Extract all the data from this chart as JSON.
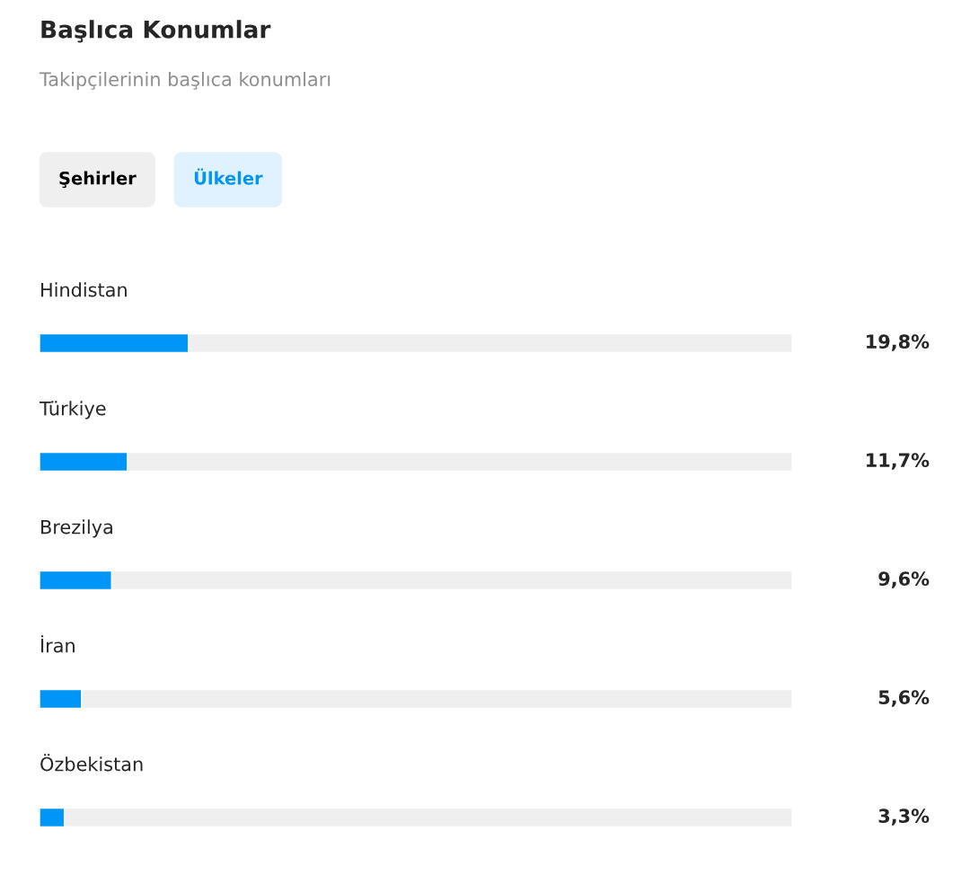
{
  "chart_data": {
    "type": "bar",
    "orientation": "horizontal",
    "stacked": true,
    "title": "Başlıca Konumlar",
    "subtitle": "Takipçilerinin başlıca konumları",
    "annotations": [
      "Şehirler",
      "Ülkeler"
    ],
    "categories": [
      "Hindistan",
      "Türkiye",
      "Brezilya",
      "İran",
      "Özbekistan"
    ],
    "series": [
      {
        "color": "#0095f6",
        "values": [
          19.8,
          11.7,
          9.6,
          5.6,
          3.3
        ],
        "value_labels": [
          "19,8%",
          "11,7%",
          "9,6%",
          "5,6%",
          "3,3%"
        ]
      },
      {
        "color": "#efefef",
        "values": [
          80.2,
          88.3,
          90.4,
          94.4,
          96.7
        ]
      }
    ],
    "xlim": [
      0,
      100
    ],
    "tick_labels": "y"
  }
}
